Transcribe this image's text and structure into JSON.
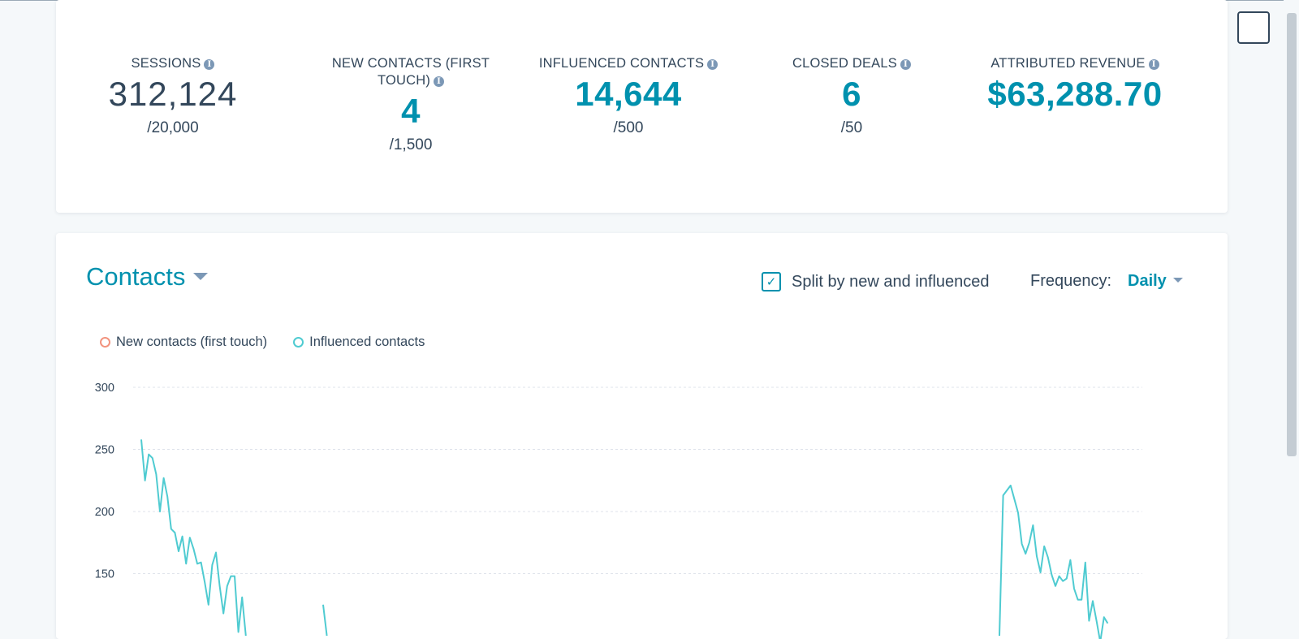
{
  "kpis": [
    {
      "label": "SESSIONS",
      "value": "312,124",
      "goal": "/20,000"
    },
    {
      "label_line1": "NEW CONTACTS (FIRST",
      "label_line2": "TOUCH)",
      "value": "4",
      "goal": "/1,500"
    },
    {
      "label": "INFLUENCED CONTACTS",
      "value": "14,644",
      "goal": "/500"
    },
    {
      "label": "CLOSED DEALS",
      "value": "6",
      "goal": "/50"
    },
    {
      "label": "ATTRIBUTED REVENUE",
      "value": "$63,288.70"
    }
  ],
  "contacts": {
    "title": "Contacts",
    "split_label": "Split by new and influenced",
    "split_checked": true,
    "frequency_label": "Frequency:",
    "frequency_value": "Daily"
  },
  "colors": {
    "accent": "#0091ae",
    "new_contacts": "#f2937e",
    "influenced": "#4fcbd1",
    "text": "#33475b"
  },
  "chart_data": {
    "type": "line",
    "yticks": [
      300,
      250,
      200,
      150
    ],
    "ylim": [
      100,
      300
    ],
    "series": [
      {
        "name": "New contacts (first touch)",
        "color": "#f2937e",
        "values": []
      },
      {
        "name": "Influenced contacts",
        "color": "#4fcbd1",
        "segments": [
          [
            258,
            225,
            246,
            243,
            230,
            200,
            227,
            212,
            186,
            183,
            168,
            180,
            158,
            179,
            170,
            158,
            159,
            143,
            125,
            157,
            167,
            140,
            118,
            140,
            148,
            148,
            103,
            131,
            100
          ],
          [
            125,
            100
          ],
          [
            100,
            213,
            217,
            221,
            210,
            199,
            174,
            166,
            175,
            189,
            164,
            151,
            172,
            163,
            149,
            140,
            148,
            144,
            146,
            161,
            138,
            129,
            129,
            159,
            112,
            128,
            112,
            95,
            115,
            110
          ]
        ]
      }
    ]
  }
}
